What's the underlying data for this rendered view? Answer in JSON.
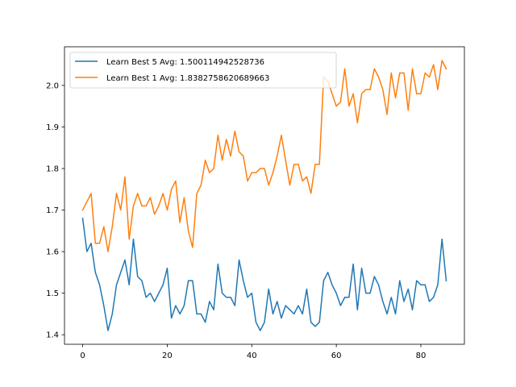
{
  "chart_data": {
    "type": "line",
    "title": "",
    "xlabel": "",
    "ylabel": "",
    "xlim": [
      -4.3,
      90.3
    ],
    "ylim": [
      1.377,
      2.093
    ],
    "xticks": [
      0,
      20,
      40,
      60,
      80
    ],
    "yticks": [
      1.4,
      1.5,
      1.6,
      1.7,
      1.8,
      1.9,
      2.0
    ],
    "ytick_labels": [
      "1.4",
      "1.5",
      "1.6",
      "1.7",
      "1.8",
      "1.9",
      "2.0"
    ],
    "legend_position": "upper-left",
    "grid": false,
    "series": [
      {
        "name": "Learn Best 5 Avg: 1.500114942528736",
        "color": "#1f77b4",
        "x": [
          0,
          1,
          2,
          3,
          4,
          5,
          6,
          7,
          8,
          9,
          10,
          11,
          12,
          13,
          14,
          15,
          16,
          17,
          18,
          19,
          20,
          21,
          22,
          23,
          24,
          25,
          26,
          27,
          28,
          29,
          30,
          31,
          32,
          33,
          34,
          35,
          36,
          37,
          38,
          39,
          40,
          41,
          42,
          43,
          44,
          45,
          46,
          47,
          48,
          49,
          50,
          51,
          52,
          53,
          54,
          55,
          56,
          57,
          58,
          59,
          60,
          61,
          62,
          63,
          64,
          65,
          66,
          67,
          68,
          69,
          70,
          71,
          72,
          73,
          74,
          75,
          76,
          77,
          78,
          79,
          80,
          81,
          82,
          83,
          84,
          85,
          86
        ],
        "y": [
          1.68,
          1.6,
          1.62,
          1.55,
          1.52,
          1.47,
          1.41,
          1.45,
          1.52,
          1.55,
          1.58,
          1.52,
          1.63,
          1.54,
          1.53,
          1.49,
          1.5,
          1.48,
          1.5,
          1.52,
          1.56,
          1.44,
          1.47,
          1.45,
          1.47,
          1.53,
          1.53,
          1.45,
          1.45,
          1.43,
          1.48,
          1.46,
          1.57,
          1.5,
          1.49,
          1.49,
          1.47,
          1.58,
          1.53,
          1.49,
          1.5,
          1.43,
          1.41,
          1.43,
          1.51,
          1.45,
          1.48,
          1.44,
          1.47,
          1.46,
          1.45,
          1.47,
          1.45,
          1.51,
          1.43,
          1.42,
          1.43,
          1.53,
          1.55,
          1.52,
          1.5,
          1.47,
          1.49,
          1.49,
          1.57,
          1.46,
          1.56,
          1.5,
          1.5,
          1.54,
          1.52,
          1.48,
          1.45,
          1.49,
          1.45,
          1.53,
          1.48,
          1.51,
          1.46,
          1.53,
          1.52,
          1.52,
          1.48,
          1.49,
          1.52,
          1.63,
          1.53
        ]
      },
      {
        "name": "Learn Best 1 Avg: 1.8382758620689663",
        "color": "#ff7f0e",
        "x": [
          0,
          1,
          2,
          3,
          4,
          5,
          6,
          7,
          8,
          9,
          10,
          11,
          12,
          13,
          14,
          15,
          16,
          17,
          18,
          19,
          20,
          21,
          22,
          23,
          24,
          25,
          26,
          27,
          28,
          29,
          30,
          31,
          32,
          33,
          34,
          35,
          36,
          37,
          38,
          39,
          40,
          41,
          42,
          43,
          44,
          45,
          46,
          47,
          48,
          49,
          50,
          51,
          52,
          53,
          54,
          55,
          56,
          57,
          58,
          59,
          60,
          61,
          62,
          63,
          64,
          65,
          66,
          67,
          68,
          69,
          70,
          71,
          72,
          73,
          74,
          75,
          76,
          77,
          78,
          79,
          80,
          81,
          82,
          83,
          84,
          85,
          86
        ],
        "y": [
          1.7,
          1.72,
          1.74,
          1.62,
          1.62,
          1.66,
          1.6,
          1.66,
          1.74,
          1.7,
          1.78,
          1.63,
          1.71,
          1.74,
          1.71,
          1.71,
          1.73,
          1.69,
          1.71,
          1.74,
          1.7,
          1.75,
          1.77,
          1.67,
          1.73,
          1.65,
          1.61,
          1.74,
          1.76,
          1.82,
          1.79,
          1.8,
          1.88,
          1.82,
          1.87,
          1.83,
          1.89,
          1.84,
          1.83,
          1.77,
          1.79,
          1.79,
          1.8,
          1.8,
          1.76,
          1.79,
          1.83,
          1.88,
          1.82,
          1.76,
          1.81,
          1.81,
          1.77,
          1.78,
          1.74,
          1.81,
          1.81,
          2.02,
          2.01,
          1.98,
          1.95,
          1.96,
          2.04,
          1.95,
          1.98,
          1.91,
          1.98,
          1.99,
          1.99,
          2.04,
          2.02,
          1.99,
          1.93,
          2.03,
          1.97,
          2.03,
          2.03,
          1.94,
          2.04,
          1.98,
          1.98,
          2.03,
          2.02,
          2.05,
          1.99,
          2.06,
          2.04
        ]
      }
    ]
  }
}
